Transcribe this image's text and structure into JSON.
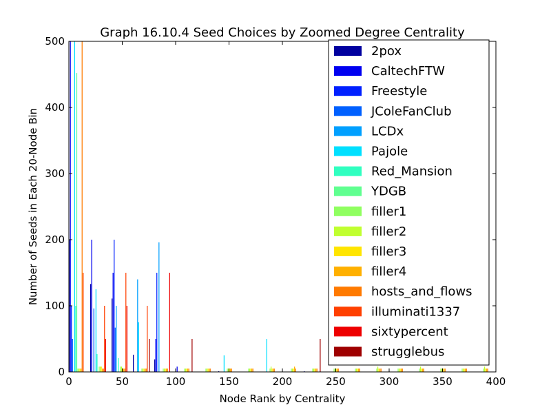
{
  "chart_data": {
    "type": "bar",
    "title": "Graph 16.10.4 Seed Choices by Zoomed Degree Centrality",
    "xlabel": "Node Rank by Centrality",
    "ylabel": "Number of Seeds in Each 20-Node Bin",
    "xlim": [
      0,
      400
    ],
    "ylim": [
      0,
      500
    ],
    "xticks": [
      "0",
      "50",
      "100",
      "150",
      "200",
      "250",
      "300",
      "350",
      "400"
    ],
    "yticks": [
      "0",
      "100",
      "200",
      "300",
      "400",
      "500"
    ],
    "bin_width": 20,
    "bin_starts": [
      0,
      20,
      40,
      60,
      80,
      100,
      120,
      140,
      160,
      180,
      200,
      220,
      240,
      260,
      280,
      300,
      320,
      340,
      360,
      380
    ],
    "legend_position": "top-right",
    "series": [
      {
        "name": "2pox",
        "color": "#00009f",
        "values": [
          200,
          133,
          111,
          26,
          19,
          0,
          0,
          1,
          0,
          0,
          0,
          1,
          0,
          0,
          0,
          0,
          0,
          0,
          0,
          0
        ]
      },
      {
        "name": "CaltechFTW",
        "color": "#0000f0",
        "values": [
          500,
          200,
          150,
          0,
          50,
          8,
          0,
          0,
          0,
          0,
          0,
          0,
          0,
          0,
          0,
          0,
          0,
          0,
          0,
          0
        ]
      },
      {
        "name": "Freestyle",
        "color": "#0020ff",
        "values": [
          100,
          0,
          200,
          0,
          150,
          0,
          0,
          0,
          0,
          0,
          0,
          0,
          0,
          0,
          0,
          0,
          0,
          0,
          0,
          0
        ]
      },
      {
        "name": "JColeFanClub",
        "color": "#0060ff",
        "values": [
          50,
          96,
          67,
          0,
          0,
          0,
          0,
          0,
          0,
          0,
          0,
          0,
          0,
          0,
          0,
          0,
          0,
          0,
          0,
          0
        ]
      },
      {
        "name": "LCDx",
        "color": "#00a0ff",
        "values": [
          0,
          0,
          100,
          140,
          196,
          0,
          0,
          0,
          0,
          0,
          0,
          0,
          0,
          0,
          0,
          0,
          0,
          0,
          0,
          0
        ]
      },
      {
        "name": "Pajole",
        "color": "#00e0ff",
        "values": [
          500,
          125,
          0,
          75,
          0,
          0,
          0,
          25,
          0,
          50,
          0,
          0,
          0,
          0,
          0,
          0,
          0,
          0,
          0,
          0
        ]
      },
      {
        "name": "Red_Mansion",
        "color": "#30ffc0",
        "values": [
          100,
          27,
          21,
          0,
          0,
          0,
          0,
          0,
          0,
          0,
          0,
          0,
          0,
          0,
          0,
          0,
          0,
          0,
          0,
          0
        ]
      },
      {
        "name": "YDGB",
        "color": "#60ff90",
        "values": [
          452,
          0,
          0,
          0,
          0,
          0,
          0,
          0,
          0,
          0,
          0,
          0,
          0,
          0,
          0,
          0,
          0,
          0,
          0,
          0
        ]
      },
      {
        "name": "filler1",
        "color": "#90ff60",
        "values": [
          5,
          8,
          8,
          5,
          5,
          5,
          5,
          5,
          5,
          5,
          5,
          5,
          5,
          5,
          5,
          5,
          5,
          5,
          5,
          5
        ]
      },
      {
        "name": "filler2",
        "color": "#c0ff30",
        "values": [
          5,
          8,
          8,
          5,
          5,
          5,
          5,
          5,
          5,
          8,
          5,
          5,
          5,
          5,
          8,
          5,
          8,
          5,
          5,
          8
        ]
      },
      {
        "name": "filler3",
        "color": "#ffe500",
        "values": [
          5,
          8,
          5,
          5,
          5,
          5,
          5,
          5,
          5,
          5,
          5,
          5,
          5,
          5,
          5,
          5,
          5,
          5,
          5,
          5
        ]
      },
      {
        "name": "filler4",
        "color": "#ffb000",
        "values": [
          5,
          5,
          5,
          5,
          5,
          5,
          5,
          5,
          5,
          5,
          8,
          5,
          5,
          5,
          5,
          5,
          5,
          5,
          5,
          5
        ]
      },
      {
        "name": "hosts_and_flows",
        "color": "#ff7a00",
        "values": [
          500,
          5,
          5,
          5,
          5,
          5,
          5,
          5,
          5,
          5,
          5,
          5,
          5,
          5,
          5,
          5,
          5,
          5,
          5,
          5
        ]
      },
      {
        "name": "illuminati1337",
        "color": "#ff4000",
        "values": [
          150,
          100,
          150,
          100,
          0,
          0,
          0,
          0,
          0,
          0,
          0,
          0,
          0,
          0,
          0,
          0,
          0,
          0,
          0,
          0
        ]
      },
      {
        "name": "sixtypercent",
        "color": "#ee0000",
        "values": [
          0,
          50,
          100,
          0,
          150,
          0,
          0,
          0,
          0,
          0,
          0,
          0,
          0,
          0,
          0,
          0,
          0,
          0,
          0,
          0
        ]
      },
      {
        "name": "strugglebus",
        "color": "#9f0000",
        "values": [
          0,
          0,
          0,
          50,
          0,
          50,
          0,
          0,
          0,
          0,
          0,
          50,
          0,
          0,
          0,
          0,
          0,
          0,
          0,
          0
        ]
      }
    ]
  }
}
